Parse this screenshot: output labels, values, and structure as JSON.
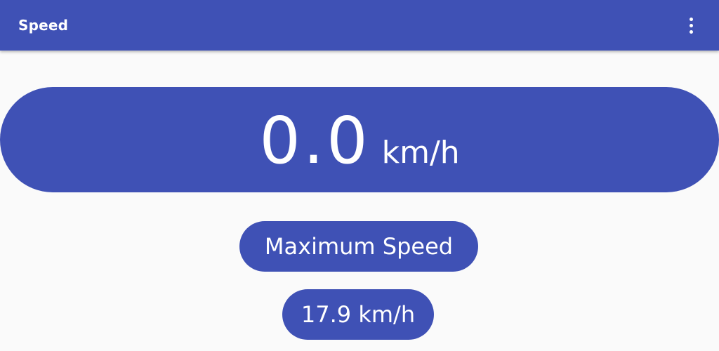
{
  "app_bar": {
    "title": "Speed",
    "overflow_menu_icon": "more-vert-icon",
    "color": "#3f51b5"
  },
  "speedometer": {
    "current_speed": "0.0",
    "unit": "km/h"
  },
  "maximum_speed": {
    "label": "Maximum Speed",
    "value": "17.9 km/h"
  },
  "colors": {
    "primary": "#3f51b5",
    "background": "#fafafa",
    "text_on_primary": "#ffffff"
  }
}
